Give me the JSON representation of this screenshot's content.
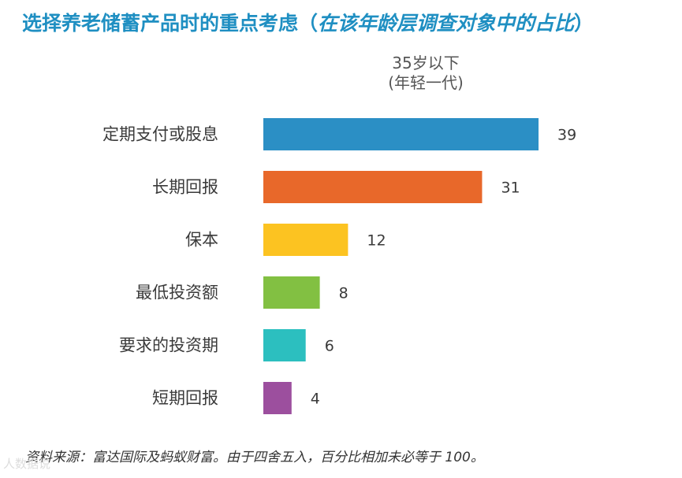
{
  "title": {
    "main": "选择养老储蓄产品时的重点考虑（",
    "italic": "在该年龄层调查对象中的占比",
    "close": "）"
  },
  "subheader": {
    "line1": "35岁以下",
    "line2": "(年轻一代)"
  },
  "chart_data": {
    "type": "bar",
    "orientation": "horizontal",
    "categories": [
      "定期支付或股息",
      "长期回报",
      "保本",
      "最低投资额",
      "要求的投资期",
      "短期回报"
    ],
    "values": [
      39,
      31,
      12,
      8,
      6,
      4
    ],
    "colors": [
      "#2b8fc5",
      "#e8682a",
      "#fcc321",
      "#82c042",
      "#2cbfbf",
      "#9c4f9e"
    ],
    "xlim": [
      0,
      40
    ],
    "grid": false,
    "legend": "none"
  },
  "footnote": "资料来源：富达国际及蚂蚁财富。由于四舍五入，百分比相加未必等于 100。",
  "watermark": "人数据说"
}
